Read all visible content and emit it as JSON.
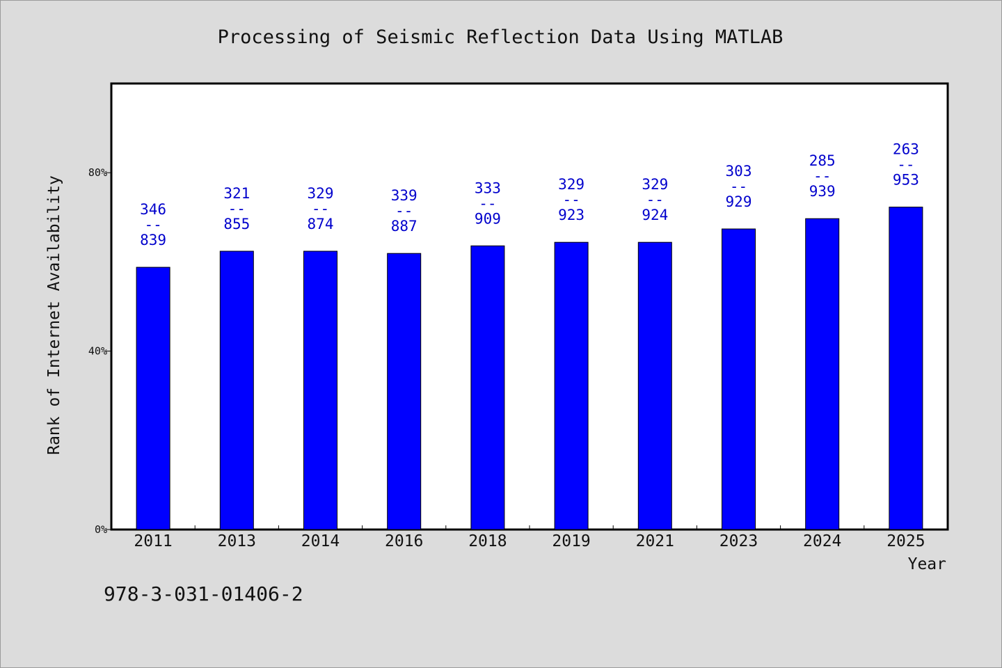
{
  "chart_data": {
    "type": "bar",
    "title": "Processing of Seismic Reflection Data Using MATLAB",
    "xlabel": "Year",
    "ylabel": "Rank of Internet Availability",
    "categories": [
      "2011",
      "2013",
      "2014",
      "2016",
      "2018",
      "2019",
      "2021",
      "2023",
      "2024",
      "2025"
    ],
    "values": [
      58.8,
      62.4,
      62.4,
      61.9,
      63.6,
      64.4,
      64.4,
      67.4,
      69.7,
      72.3
    ],
    "value_unit": "%",
    "ylim": [
      0,
      100
    ],
    "yticks": [
      {
        "value": 0,
        "label": "0%"
      },
      {
        "value": 40,
        "label": "40%"
      },
      {
        "value": 80,
        "label": "80%"
      }
    ],
    "data_labels": [
      {
        "rank": "346",
        "separator": "--",
        "total": "839"
      },
      {
        "rank": "321",
        "separator": "--",
        "total": "855"
      },
      {
        "rank": "329",
        "separator": "--",
        "total": "874"
      },
      {
        "rank": "339",
        "separator": "--",
        "total": "887"
      },
      {
        "rank": "333",
        "separator": "--",
        "total": "909"
      },
      {
        "rank": "329",
        "separator": "--",
        "total": "923"
      },
      {
        "rank": "329",
        "separator": "--",
        "total": "924"
      },
      {
        "rank": "303",
        "separator": "--",
        "total": "929"
      },
      {
        "rank": "285",
        "separator": "--",
        "total": "939"
      },
      {
        "rank": "263",
        "separator": "--",
        "total": "953"
      }
    ],
    "grid": false,
    "legend": "none",
    "colors": {
      "bar": "#0000ff",
      "label": "#0000cc",
      "background": "#dcdcdc",
      "plot_area": "#ffffff"
    }
  },
  "footer": {
    "isbn": "978-3-031-01406-2"
  }
}
